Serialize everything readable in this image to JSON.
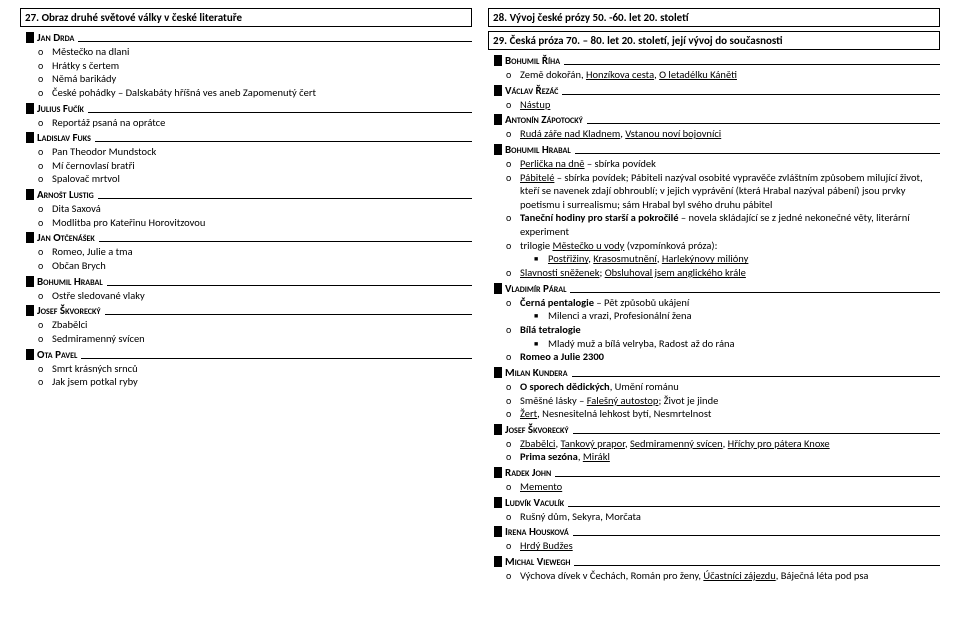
{
  "left": {
    "title": "27. Obraz druhé světové války v české literatuře",
    "authors": [
      {
        "name": "Jan Drda",
        "items": [
          "Městečko na dlani",
          "Hrátky s čertem",
          "Němá barikády",
          "České pohádky – Dalskabáty hříšná ves aneb Zapomenutý čert"
        ]
      },
      {
        "name": "Julius Fučík",
        "items": [
          "Reportáž psaná na oprátce"
        ]
      },
      {
        "name": "Ladislav Fuks",
        "items": [
          "Pan Theodor Mundstock",
          "Mí černovlasí bratři",
          "Spalovač mrtvol"
        ]
      },
      {
        "name": "Arnošt Lustig",
        "items": [
          "Dita Saxová",
          "Modlitba pro Kateřinu Horovitzovou"
        ]
      },
      {
        "name": "Jan Otčenášek",
        "items": [
          "Romeo, Julie a tma",
          "Občan Brych"
        ]
      },
      {
        "name": "Bohumil Hrabal",
        "items": [
          "Ostře sledované vlaky"
        ]
      },
      {
        "name": "Josef Škvorecký",
        "items": [
          "Zbabělci",
          "Sedmiramenný svícen"
        ]
      },
      {
        "name": "Ota Pavel",
        "items": [
          "Smrt krásných srnců",
          "Jak jsem potkal ryby"
        ]
      }
    ]
  },
  "right": {
    "title1": "28. Vývoj české prózy 50. -60. let 20. století",
    "title2": "29. Česká próza 70. – 80. let 20. století, její vývoj do současnosti",
    "authors": [
      {
        "name": "Bohumil Říha",
        "items_html": [
          "Země dokořán, <u>Honzíkova cesta</u>, <u>O letadélku Káněti</u>"
        ]
      },
      {
        "name": "Václav Řezáč",
        "items_html": [
          "<u>Nástup</u>"
        ]
      },
      {
        "name": "Antonín Zápotocký",
        "items_html": [
          "<u>Rudá záře nad Kladnem</u>, <u>Vstanou noví bojovníci</u>"
        ]
      },
      {
        "name": "Bohumil Hrabal",
        "items_html": [
          "<u>Perlička na dně</u> – sbírka povídek",
          "<u>Pábitelé</u> – sbírka povídek; Pábiteli nazýval osobité vypravěče zvláštním způsobem milující život, kteří se navenek zdají obhroublí; v jejich vyprávění (která Hrabal nazýval pábení) jsou prvky poetismu i surrealismu; sám Hrabal byl svého druhu pábitel",
          "<b>Taneční hodiny pro starší a pokročilé</b> – novela skládající se z jedné nekonečné věty, literární experiment",
          "trilogie <u>Městečko u vody</u> (vzpomínková próza):"
        ],
        "subitems_html": [
          "<u>Postřižiny</u>, <u>Krasosmutnění</u>, <u>Harlekýnovy milióny</u>"
        ],
        "items2_html": [
          "<u>Slavnosti sněženek</u>; <u>Obsluhoval jsem anglického krále</u>"
        ]
      },
      {
        "name": "Vladimír Páral",
        "items_html": [
          "<b>Černá pentalogie</b> – Pět způsobů ukájení"
        ],
        "subitems_html": [
          "Milenci a vrazi, Profesionální žena"
        ],
        "items2_html": [
          "<b>Bílá tetralogie</b>"
        ],
        "subitems2_html": [
          "Mladý muž a bílá velryba, Radost až do rána"
        ],
        "items3_html": [
          "<b>Romeo a Julie 2300</b>"
        ]
      },
      {
        "name": "Milan Kundera",
        "items_html": [
          "<b>O sporech dědických</b>, Umění románu",
          "Směšné lásky – <u>Falešný autostop</u>; Život je jinde",
          "<u>Žert</u>, Nesnesitelná lehkost bytí, Nesmrtelnost"
        ]
      },
      {
        "name": "Josef Škvorecký",
        "items_html": [
          "<u>Zbabělci</u>, <u>Tankový prapor</u>, <u>Sedmiramenný svícen</u>, <u>Hříchy pro pátera Knoxe</u>",
          "<b>Prima sezóna</b>, <u>Mirákl</u>"
        ]
      },
      {
        "name": "Radek John",
        "items_html": [
          "<u>Memento</u>"
        ]
      },
      {
        "name": "Ludvík Vaculík",
        "items_html": [
          "Rušný dům, Sekyra, Morčata"
        ]
      },
      {
        "name": "Irena Housková",
        "items_html": [
          "<u>Hrdý Budžes</u>"
        ]
      },
      {
        "name": "Michal Viewegh",
        "items_html": [
          "Výchova dívek v Čechách, Román pro ženy, <u>Účastníci zájezdu</u>, Báječná léta pod psa"
        ]
      }
    ]
  }
}
